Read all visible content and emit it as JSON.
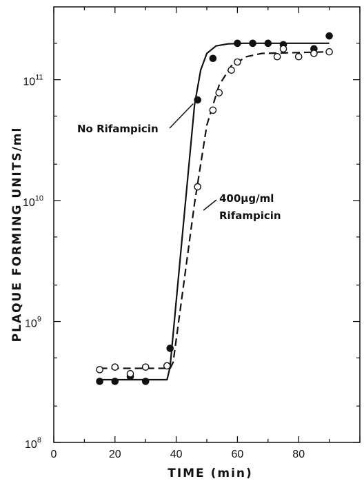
{
  "chart_data": {
    "type": "scatter",
    "title": "",
    "xlabel": "TIME (min)",
    "ylabel": "PLAQUE FORMING UNITS/ml",
    "xlim": [
      0,
      100
    ],
    "ylim": [
      100000000,
      400000000000
    ],
    "yscale": "log",
    "grid": false,
    "x_ticks": [
      0,
      20,
      40,
      60,
      80
    ],
    "x_tick_labels": [
      "0",
      "20",
      "40",
      "60",
      "80"
    ],
    "y_ticks": [
      {
        "value": 100000000,
        "base": "10",
        "exp": "8"
      },
      {
        "value": 1000000000,
        "base": "10",
        "exp": "9"
      },
      {
        "value": 10000000000,
        "base": "10",
        "exp": "10"
      },
      {
        "value": 100000000000,
        "base": "10",
        "exp": "11"
      }
    ],
    "series": [
      {
        "name": "No Rifampicin",
        "marker": "filled-circle",
        "line": "solid",
        "points": [
          [
            15,
            320000000
          ],
          [
            20,
            320000000
          ],
          [
            25,
            350000000
          ],
          [
            30,
            320000000
          ],
          [
            38,
            600000000
          ],
          [
            47,
            68000000000
          ],
          [
            52,
            150000000000
          ],
          [
            60,
            200000000000
          ],
          [
            65,
            200000000000
          ],
          [
            70,
            200000000000
          ],
          [
            75,
            195000000000
          ],
          [
            85,
            180000000000
          ],
          [
            90,
            230000000000
          ]
        ],
        "fit": [
          [
            15,
            330000000
          ],
          [
            37,
            330000000
          ],
          [
            38,
            420000000
          ],
          [
            46,
            62000000000
          ],
          [
            48,
            120000000000
          ],
          [
            50,
            165000000000
          ],
          [
            53,
            190000000000
          ],
          [
            57,
            198000000000
          ],
          [
            62,
            200000000000
          ],
          [
            90,
            200000000000
          ]
        ]
      },
      {
        "name": "400µg/ml Rifampicin",
        "marker": "open-circle",
        "line": "dashed",
        "points": [
          [
            15,
            400000000
          ],
          [
            20,
            420000000
          ],
          [
            25,
            370000000
          ],
          [
            30,
            420000000
          ],
          [
            37,
            430000000
          ],
          [
            47,
            13000000000
          ],
          [
            52,
            56000000000
          ],
          [
            54,
            78000000000
          ],
          [
            58,
            120000000000
          ],
          [
            60,
            140000000000
          ],
          [
            73,
            155000000000
          ],
          [
            75,
            180000000000
          ],
          [
            80,
            155000000000
          ],
          [
            85,
            165000000000
          ],
          [
            90,
            170000000000
          ]
        ],
        "fit": [
          [
            15,
            410000000
          ],
          [
            38,
            410000000
          ],
          [
            39,
            460000000
          ],
          [
            46,
            9500000000
          ],
          [
            50,
            42000000000
          ],
          [
            54,
            90000000000
          ],
          [
            58,
            130000000000
          ],
          [
            63,
            155000000000
          ],
          [
            68,
            165000000000
          ],
          [
            90,
            170000000000
          ]
        ]
      }
    ],
    "annotations": [
      {
        "text": "No Rifampicin",
        "target": [
          46,
          65000000000
        ]
      },
      {
        "text": "400µg/ml",
        "line2": "Rifampicin",
        "target": [
          48,
          9000000000
        ]
      }
    ]
  }
}
